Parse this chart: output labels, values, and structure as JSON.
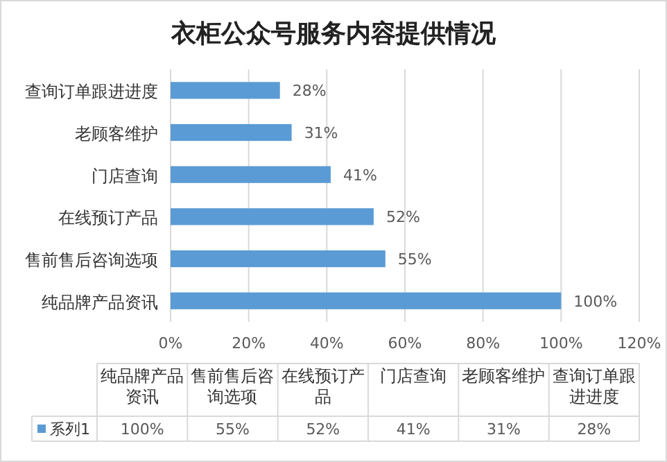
{
  "chart_data": {
    "type": "bar",
    "orientation": "horizontal",
    "title": "衣柜公众号服务内容提供情况",
    "categories": [
      "查询订单跟进进度",
      "老顾客维护",
      "门店查询",
      "在线预订产品",
      "售前售后咨询选项",
      "纯品牌产品资讯"
    ],
    "series": [
      {
        "name": "系列1",
        "color": "#5b9bd5",
        "values": [
          28,
          31,
          41,
          52,
          55,
          100
        ],
        "value_labels": [
          "28%",
          "31%",
          "41%",
          "52%",
          "55%",
          "100%"
        ]
      }
    ],
    "xlim": [
      0,
      120
    ],
    "xticks": [
      {
        "value": 0,
        "label": "0%"
      },
      {
        "value": 20,
        "label": "20%"
      },
      {
        "value": 40,
        "label": "40%"
      },
      {
        "value": 60,
        "label": "60%"
      },
      {
        "value": 80,
        "label": "80%"
      },
      {
        "value": 100,
        "label": "100%"
      },
      {
        "value": 120,
        "label": "120%"
      }
    ],
    "grid": "x",
    "legend": "bottom"
  }
}
